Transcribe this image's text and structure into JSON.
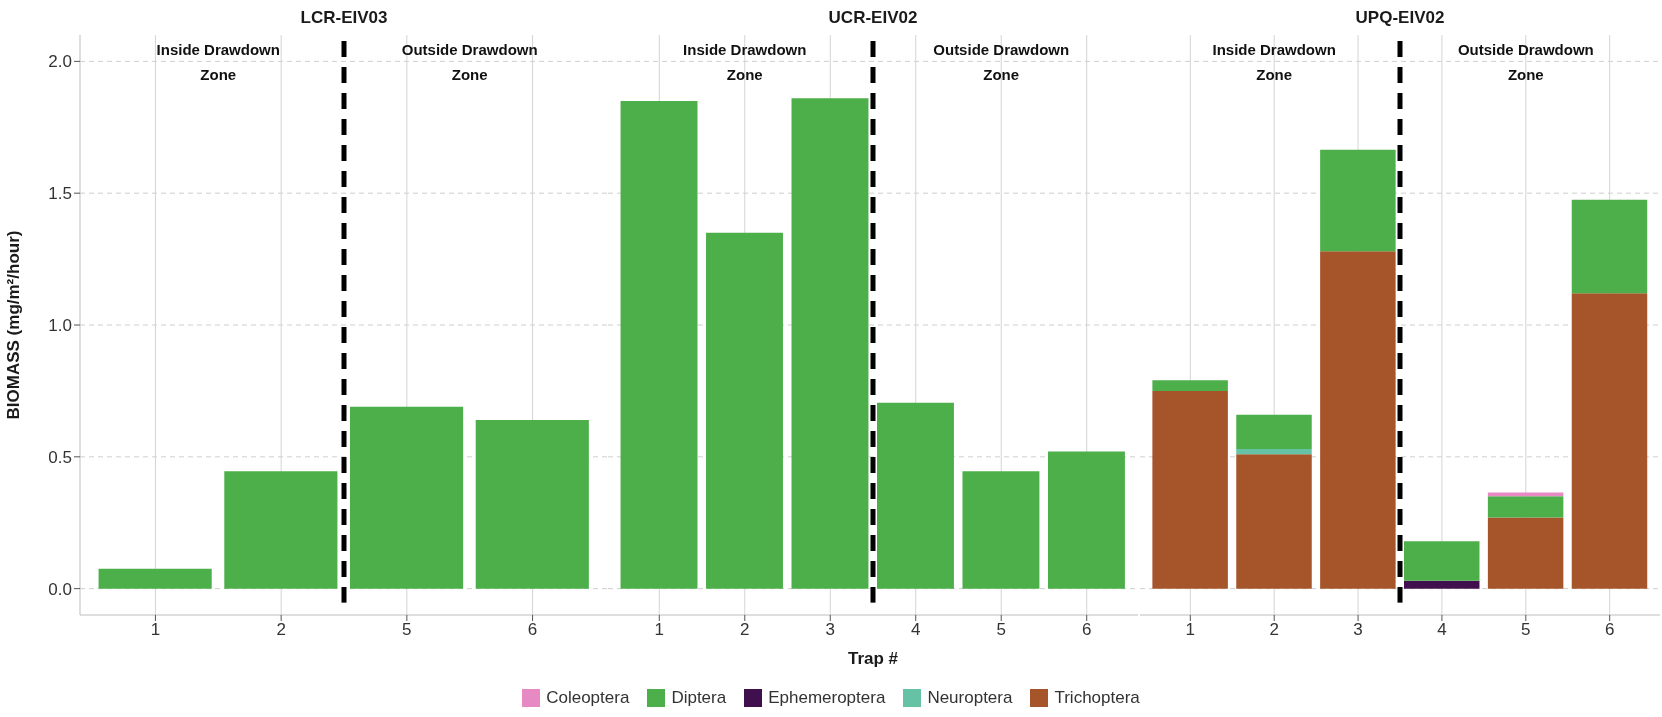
{
  "chart_data": [
    {
      "type": "bar",
      "title": "LCR-EIV03",
      "ylabel": "BIOMASS (mg/m²/hour)",
      "categories": [
        "1",
        "2",
        "5",
        "6"
      ],
      "stacked": true,
      "ylim": [
        -0.1,
        2.1
      ],
      "yticks": [
        {
          "value": 0,
          "label": "0.0"
        },
        0.5,
        {
          "value": 1,
          "label": "1.0"
        },
        1.5,
        {
          "value": 2,
          "label": "2.0"
        }
      ],
      "grid": true,
      "series": [
        {
          "color": "#4daf4a",
          "values": [
            0.075,
            0.445,
            0.69,
            0.64
          ]
        }
      ],
      "annotations": [
        "Inside Drawdown Zone",
        "Outside Drawdown Zone"
      ]
    },
    {
      "type": "bar",
      "title": "UCR-EIV02",
      "xlabel": "Trap #",
      "categories": [
        "1",
        "2",
        "3",
        "4",
        "5",
        "6"
      ],
      "stacked": true,
      "ylim": [
        -0.1,
        2.1
      ],
      "yticks": [
        0,
        0.5,
        1,
        1.5,
        2
      ],
      "grid": true,
      "tick_labels": "x",
      "series": [
        {
          "color": "#4daf4a",
          "values": [
            1.85,
            1.35,
            1.86,
            0.705,
            0.445,
            0.52
          ]
        }
      ],
      "annotations": [
        "Inside Drawdown Zone",
        "Outside Drawdown Zone"
      ]
    },
    {
      "type": "bar",
      "title": "UPQ-EIV02",
      "categories": [
        "1",
        "2",
        "3",
        "4",
        "5",
        "6"
      ],
      "stacked": true,
      "ylim": [
        -0.1,
        2.1
      ],
      "yticks": [
        0,
        0.5,
        1,
        1.5,
        2
      ],
      "grid": true,
      "tick_labels": "x",
      "legend": "bottom",
      "series": [
        {
          "name": "Trichoptera",
          "color": "#a6542a",
          "values": [
            0.75,
            0.51,
            1.28,
            null,
            0.27,
            1.12
          ]
        },
        {
          "name": "Neuroptera",
          "color": "#66c2a5",
          "values": [
            null,
            0.02,
            null,
            null,
            null,
            null
          ]
        },
        {
          "name": "Ephemeroptera",
          "color": "#40104e",
          "values": [
            null,
            null,
            null,
            0.03,
            null,
            null
          ]
        },
        {
          "name": "Diptera",
          "color": "#4daf4a",
          "values": [
            0.04,
            0.13,
            0.385,
            0.15,
            0.08,
            0.355
          ]
        },
        {
          "name": "Coleoptera",
          "color": "#e78ac3",
          "values": [
            null,
            null,
            null,
            null,
            0.015,
            null
          ]
        }
      ],
      "annotations": [
        "Inside Drawdown Zone",
        "Outside Drawdown Zone"
      ]
    }
  ]
}
